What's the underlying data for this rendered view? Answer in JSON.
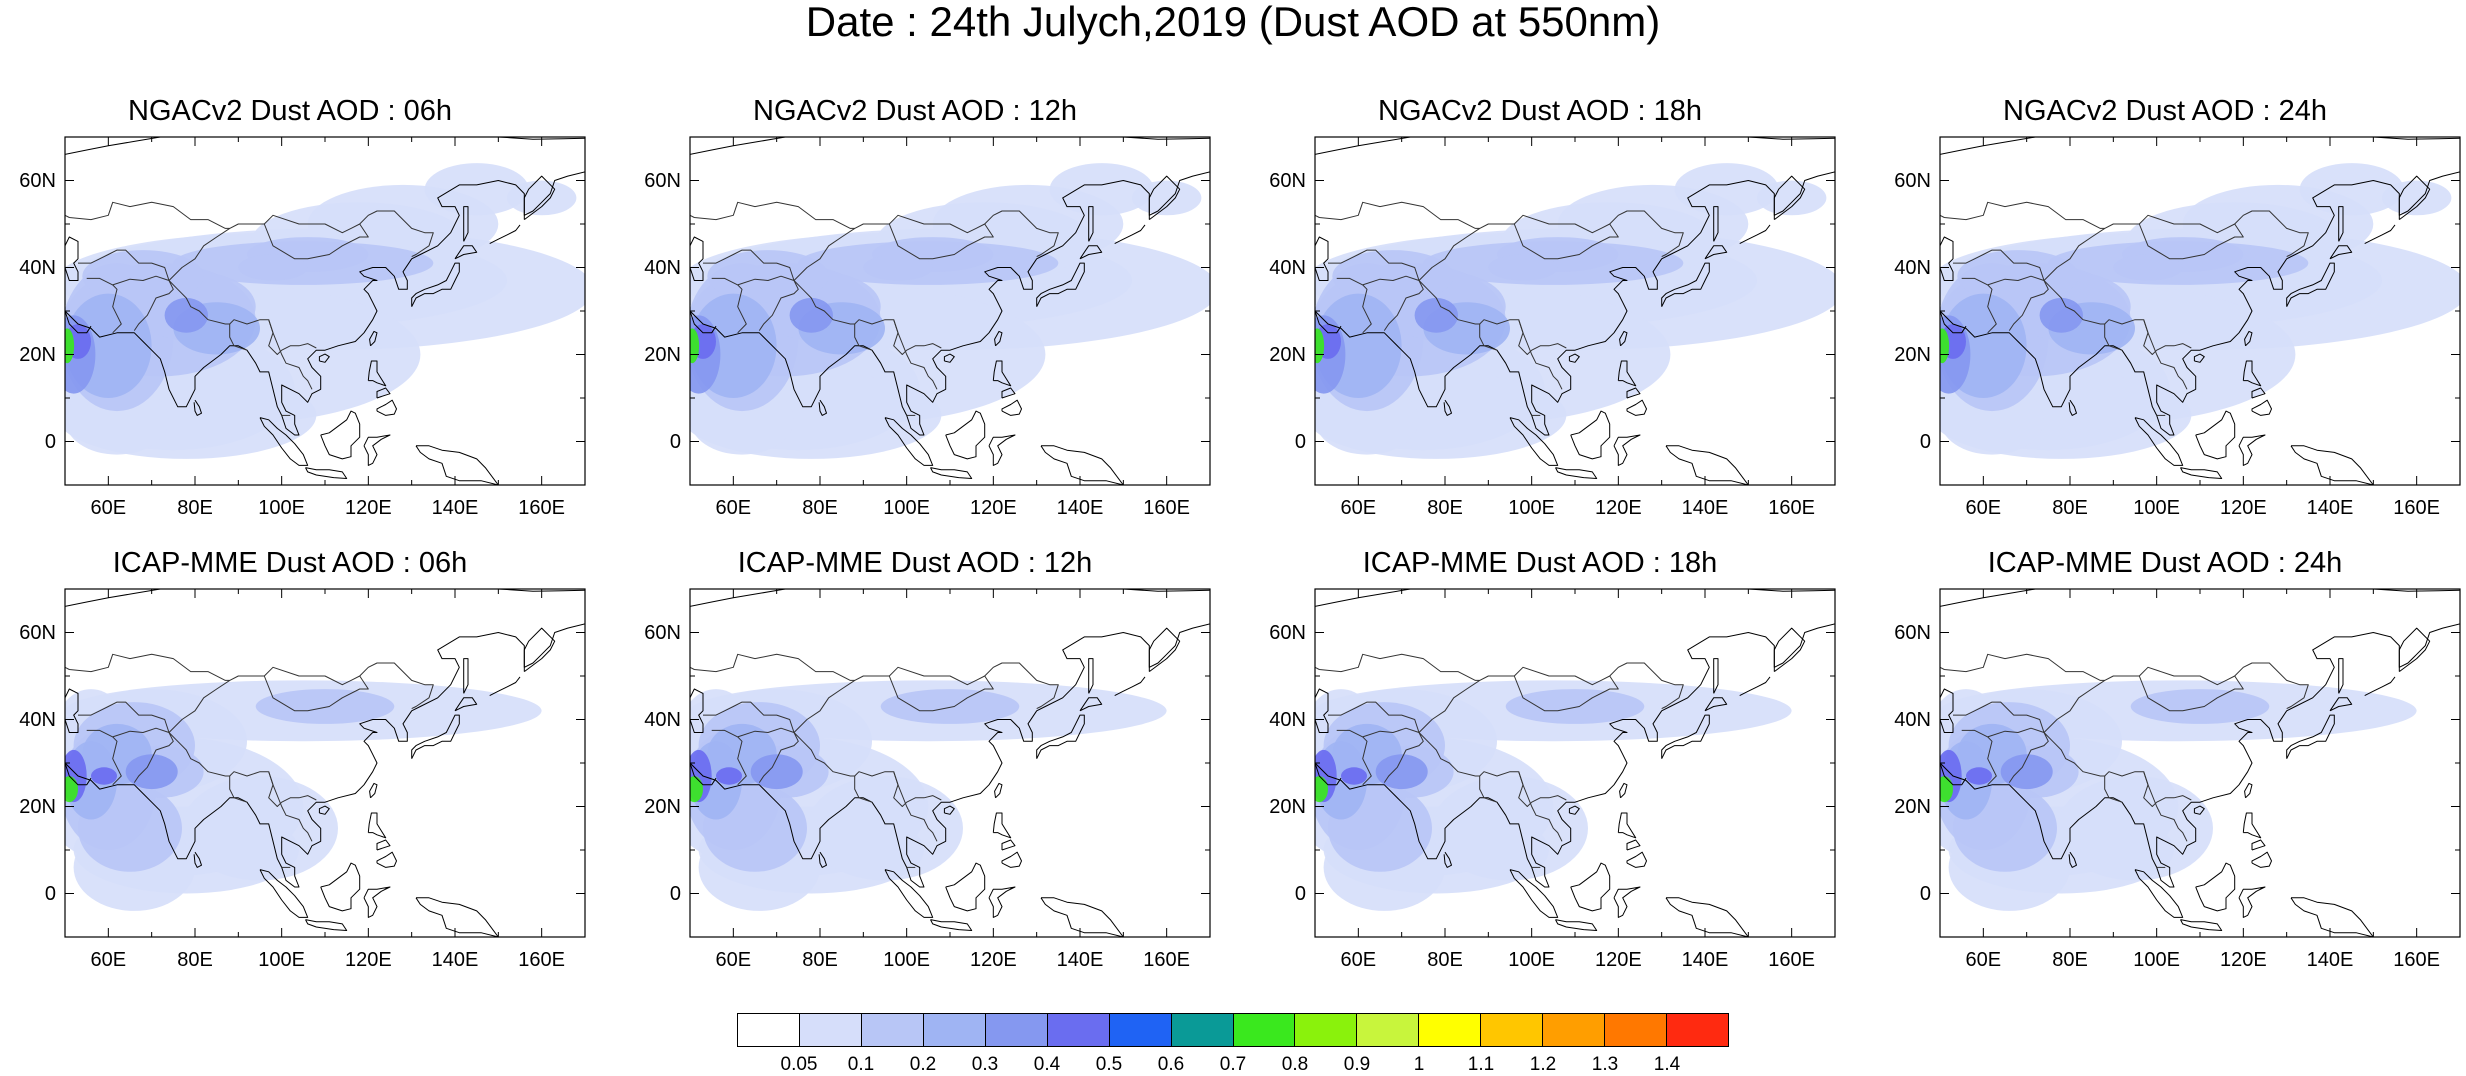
{
  "figure": {
    "title": "Date : 24th Julych,2019 (Dust AOD at 550nm)"
  },
  "map_axes": {
    "x_ticks": [
      "60E",
      "80E",
      "100E",
      "120E",
      "140E",
      "160E"
    ],
    "y_ticks": [
      "60N",
      "40N",
      "20N",
      "0"
    ],
    "x_tick_values": [
      60,
      80,
      100,
      120,
      140,
      160
    ],
    "y_tick_values": [
      60,
      40,
      20,
      0
    ],
    "lon_range": [
      50,
      170
    ],
    "lat_range": [
      -10,
      70
    ]
  },
  "panels": [
    {
      "title": "NGACv2 Dust AOD : 06h",
      "model": "NGACv2",
      "forecast_hour": "06h"
    },
    {
      "title": "NGACv2 Dust AOD : 12h",
      "model": "NGACv2",
      "forecast_hour": "12h"
    },
    {
      "title": "NGACv2 Dust AOD : 18h",
      "model": "NGACv2",
      "forecast_hour": "18h"
    },
    {
      "title": "NGACv2 Dust AOD : 24h",
      "model": "NGACv2",
      "forecast_hour": "24h"
    },
    {
      "title": "ICAP-MME Dust AOD : 06h",
      "model": "ICAP-MME",
      "forecast_hour": "06h"
    },
    {
      "title": "ICAP-MME Dust AOD : 12h",
      "model": "ICAP-MME",
      "forecast_hour": "12h"
    },
    {
      "title": "ICAP-MME Dust AOD : 18h",
      "model": "ICAP-MME",
      "forecast_hour": "18h"
    },
    {
      "title": "ICAP-MME Dust AOD : 24h",
      "model": "ICAP-MME",
      "forecast_hour": "24h"
    }
  ],
  "colorbar": {
    "labels": [
      "0.05",
      "0.1",
      "0.2",
      "0.3",
      "0.4",
      "0.5",
      "0.6",
      "0.7",
      "0.8",
      "0.9",
      "1",
      "1.1",
      "1.2",
      "1.3",
      "1.4"
    ],
    "colors": [
      "#ffffff",
      "#d6defa",
      "#b8c6f6",
      "#9fb4f3",
      "#8598f0",
      "#6a6df0",
      "#1f63f4",
      "#0a9a97",
      "#3ae81e",
      "#8af20c",
      "#c8f53c",
      "#ffff00",
      "#ffc600",
      "#ff9e00",
      "#ff7800",
      "#ff2a10"
    ]
  },
  "legend_colors": {
    "map_outline": "#000000",
    "land_boundary": "#333333"
  }
}
